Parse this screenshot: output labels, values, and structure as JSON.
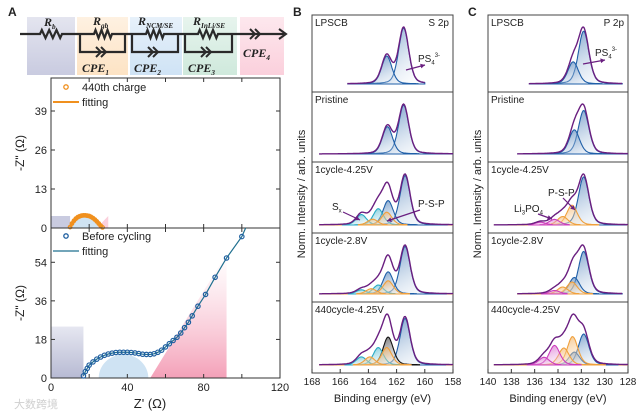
{
  "panel_labels": {
    "a": "A",
    "b": "B",
    "c": "C"
  },
  "circuit": {
    "resistors": [
      {
        "main": "R",
        "sub": "b"
      },
      {
        "main": "R",
        "sub": "gb"
      },
      {
        "main": "R",
        "sub": "NCM/SE"
      },
      {
        "main": "R",
        "sub": "InLi/SE"
      }
    ],
    "cpes": [
      {
        "main": "CPE",
        "sub": "1"
      },
      {
        "main": "CPE",
        "sub": "2"
      },
      {
        "main": "CPE",
        "sub": "3"
      },
      {
        "main": "CPE",
        "sub": "4"
      }
    ],
    "colors": [
      "#c9cbe0",
      "#fde3c4",
      "#cfe3f5",
      "#cfe9dc",
      "#fbd0dc"
    ]
  },
  "chart_data": [
    {
      "id": "nyquist-top",
      "type": "scatter",
      "xlabel": "Z'  (Ω)",
      "ylabel": "-Z\" (Ω)",
      "xlim": [
        0,
        120
      ],
      "ylim": [
        0,
        50
      ],
      "yticks": [
        "0",
        "13",
        "26",
        "39"
      ],
      "legend": [
        {
          "label": "440th charge",
          "kind": "marker",
          "color": "#f0901e"
        },
        {
          "label": "fitting",
          "kind": "line",
          "color": "#f0901e"
        }
      ],
      "legend_position": "top-left",
      "series": [
        {
          "name": "440th charge",
          "color": "#f0901e",
          "points": [
            [
              10,
              0.3
            ],
            [
              11,
              1.5
            ],
            [
              12,
              2.4
            ],
            [
              13,
              3.1
            ],
            [
              14,
              3.6
            ],
            [
              15,
              3.9
            ],
            [
              16,
              4.1
            ],
            [
              17,
              4.2
            ],
            [
              18,
              4.2
            ],
            [
              19,
              4.1
            ],
            [
              20,
              4.0
            ],
            [
              21,
              3.7
            ],
            [
              22,
              3.3
            ],
            [
              23,
              2.8
            ],
            [
              24,
              2.2
            ],
            [
              25,
              1.5
            ],
            [
              26,
              0.8
            ],
            [
              27,
              0.2
            ]
          ]
        }
      ]
    },
    {
      "id": "nyquist-bottom",
      "type": "scatter",
      "xlabel": "Z'  (Ω)",
      "ylabel": "-Z\" (Ω)",
      "xlim": [
        0,
        120
      ],
      "ylim": [
        0,
        70
      ],
      "xticks": [
        "0",
        "40",
        "80",
        "120"
      ],
      "yticks": [
        "0",
        "18",
        "36",
        "54"
      ],
      "legend": [
        {
          "label": "Before cycling",
          "kind": "marker",
          "color": "#1f5fa0"
        },
        {
          "label": "fitting",
          "kind": "line",
          "color": "#1f6f8f"
        }
      ],
      "legend_position": "top-left",
      "series": [
        {
          "name": "Before cycling",
          "color": "#1f5fa0",
          "points": [
            [
              17,
              1
            ],
            [
              18,
              3
            ],
            [
              19,
              4.5
            ],
            [
              20,
              6
            ],
            [
              22,
              7.5
            ],
            [
              24,
              8.8
            ],
            [
              26,
              9.8
            ],
            [
              28,
              10.6
            ],
            [
              30,
              11.2
            ],
            [
              32,
              11.6
            ],
            [
              34,
              11.9
            ],
            [
              36,
              12
            ],
            [
              38,
              12
            ],
            [
              40,
              12
            ],
            [
              42,
              11.9
            ],
            [
              44,
              11.7
            ],
            [
              46,
              11.4
            ],
            [
              48,
              11.1
            ],
            [
              50,
              11
            ],
            [
              52,
              11
            ],
            [
              54,
              11.3
            ],
            [
              56,
              12
            ],
            [
              58,
              13
            ],
            [
              60,
              14.5
            ],
            [
              62,
              16
            ],
            [
              64,
              17.5
            ],
            [
              66,
              19
            ],
            [
              68,
              21
            ],
            [
              70,
              23.5
            ],
            [
              72,
              26
            ],
            [
              74,
              29
            ],
            [
              77,
              33.5
            ],
            [
              81,
              39
            ],
            [
              86,
              47
            ],
            [
              92,
              56
            ],
            [
              100,
              66
            ]
          ],
          "fit_end": [
            102,
            70
          ]
        }
      ]
    },
    {
      "id": "xps-s2p",
      "type": "line",
      "title": "S 2p",
      "xlabel": "Binding energy (eV)",
      "ylabel": "Norm. Intensity / arb. units",
      "xlim": [
        168,
        158
      ],
      "xticks": [
        "168",
        "166",
        "164",
        "162",
        "160",
        "158"
      ],
      "sigma": 0.36,
      "panels": [
        {
          "label": "LPSCB",
          "range": [
            165.5,
            160
          ],
          "peaks": [
            [
              161.5,
              1.0,
              "blue"
            ],
            [
              162.7,
              0.5,
              "blue"
            ]
          ],
          "annotations": [
            {
              "text": "PS",
              "sub": "4",
              "sup": "3-"
            }
          ]
        },
        {
          "label": "Pristine",
          "range": [
            167.5,
            158
          ],
          "peaks": [
            [
              161.5,
              1.0,
              "blue"
            ],
            [
              162.65,
              0.56,
              "blue"
            ]
          ]
        },
        {
          "label": "1cycle-4.25V",
          "range": [
            167.5,
            158
          ],
          "peaks": [
            [
              161.4,
              0.85,
              "blue"
            ],
            [
              162.6,
              0.42,
              "blue"
            ],
            [
              163.3,
              0.28,
              "cyan"
            ],
            [
              164.5,
              0.18,
              "cyan"
            ],
            [
              162.7,
              0.22,
              "orange"
            ],
            [
              163.7,
              0.1,
              "orange"
            ]
          ],
          "annotations": [
            {
              "text": "S",
              "sub": "x"
            },
            {
              "text": "P-S-P"
            }
          ]
        },
        {
          "label": "1cycle-2.8V",
          "range": [
            167.5,
            158
          ],
          "peaks": [
            [
              161.4,
              0.9,
              "blue"
            ],
            [
              162.6,
              0.42,
              "blue"
            ],
            [
              163.3,
              0.17,
              "cyan"
            ],
            [
              164.5,
              0.08,
              "cyan"
            ],
            [
              162.6,
              0.25,
              "orange"
            ],
            [
              163.8,
              0.1,
              "orange"
            ]
          ]
        },
        {
          "label": "440cycle-4.25V",
          "range": [
            167.5,
            158
          ],
          "peaks": [
            [
              161.4,
              0.8,
              "blue"
            ],
            [
              162.6,
              0.48,
              "black"
            ],
            [
              163.3,
              0.3,
              "cyan"
            ],
            [
              164.5,
              0.14,
              "cyan"
            ],
            [
              162.7,
              0.3,
              "orange"
            ],
            [
              163.9,
              0.14,
              "orange"
            ]
          ]
        }
      ]
    },
    {
      "id": "xps-p2p",
      "type": "line",
      "title": "P 2p",
      "xlabel": "Binding energy (eV)",
      "ylabel": "Norm. Intensity / arb. units",
      "xlim": [
        140,
        128
      ],
      "xticks": [
        "140",
        "138",
        "136",
        "134",
        "132",
        "130",
        "128"
      ],
      "sigma": 0.45,
      "panels": [
        {
          "label": "LPSCB",
          "range": [
            136.5,
            128.5
          ],
          "peaks": [
            [
              131.8,
              1.0,
              "blue"
            ],
            [
              132.7,
              0.42,
              "blue"
            ]
          ],
          "annotations": [
            {
              "text": "PS",
              "sub": "4",
              "sup": "3-"
            }
          ]
        },
        {
          "label": "Pristine",
          "range": [
            137.5,
            128
          ],
          "peaks": [
            [
              131.8,
              0.9,
              "blue"
            ],
            [
              132.6,
              0.5,
              "blue"
            ]
          ]
        },
        {
          "label": "1cycle-4.25V",
          "range": [
            139.5,
            128
          ],
          "peaks": [
            [
              131.8,
              0.85,
              "blue"
            ],
            [
              132.8,
              0.35,
              "orange"
            ],
            [
              133.6,
              0.15,
              "orange"
            ],
            [
              134.3,
              0.1,
              "magenta"
            ],
            [
              135.5,
              0.05,
              "magenta"
            ]
          ],
          "annotations": [
            {
              "text": "P-S-P"
            },
            {
              "text": "Li",
              "sub": "3",
              "text2": "PO",
              "sub2": "4"
            }
          ]
        },
        {
          "label": "1cycle-2.8V",
          "range": [
            137.5,
            128.5
          ],
          "peaks": [
            [
              131.8,
              0.85,
              "blue"
            ],
            [
              132.6,
              0.33,
              "blue"
            ],
            [
              132.8,
              0.24,
              "orange"
            ],
            [
              133.6,
              0.14,
              "orange"
            ],
            [
              134.3,
              0.07,
              "magenta"
            ]
          ]
        },
        {
          "label": "440cycle-4.25V",
          "range": [
            139.5,
            128
          ],
          "peaks": [
            [
              131.8,
              0.6,
              "blue"
            ],
            [
              132.6,
              0.25,
              "blue"
            ],
            [
              132.75,
              0.55,
              "orange"
            ],
            [
              133.5,
              0.33,
              "orange"
            ],
            [
              134.3,
              0.38,
              "magenta"
            ],
            [
              135.2,
              0.15,
              "magenta"
            ]
          ]
        }
      ]
    }
  ],
  "colors": {
    "blue": "#1f5fa8",
    "cyan": "#27aac4",
    "orange": "#f0a03c",
    "magenta": "#cc3dbd",
    "black": "#111111",
    "envelope": "#6a1f80",
    "arrow": "#6a1f80"
  },
  "watermark": "大数跨境"
}
